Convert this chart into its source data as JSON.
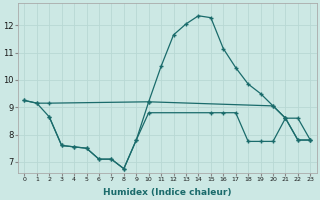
{
  "xlabel": "Humidex (Indice chaleur)",
  "background_color": "#cce8e4",
  "grid_color": "#b8d8d4",
  "line_color": "#1a6b6b",
  "xlim": [
    -0.5,
    23.5
  ],
  "ylim": [
    6.6,
    12.8
  ],
  "yticks": [
    7,
    8,
    9,
    10,
    11,
    12
  ],
  "ytick_labels": [
    "7",
    "8",
    "9",
    "10",
    "11",
    "12"
  ],
  "xtick_labels": [
    "0",
    "1",
    "2",
    "3",
    "4",
    "5",
    "6",
    "7",
    "8",
    "9",
    "10",
    "11",
    "12",
    "13",
    "14",
    "15",
    "16",
    "17",
    "18",
    "19",
    "20",
    "21",
    "22",
    "23"
  ],
  "line1_x": [
    0,
    1,
    2,
    10,
    20,
    21,
    22,
    23
  ],
  "line1_y": [
    9.25,
    9.15,
    9.15,
    9.2,
    9.05,
    8.6,
    8.6,
    7.8
  ],
  "line2_x": [
    0,
    1,
    2,
    3,
    4,
    5,
    6,
    7,
    8,
    9,
    10,
    11,
    12,
    13,
    14,
    15,
    16,
    17,
    18,
    19,
    20,
    21,
    22,
    23
  ],
  "line2_y": [
    9.25,
    9.15,
    8.65,
    7.6,
    7.55,
    7.5,
    7.1,
    7.1,
    6.75,
    7.8,
    9.2,
    10.5,
    11.65,
    12.05,
    12.35,
    12.28,
    11.15,
    10.45,
    9.85,
    9.5,
    9.05,
    8.6,
    7.8,
    7.8
  ],
  "line3_x": [
    2,
    3,
    4,
    5,
    6,
    7,
    8,
    9,
    10,
    15,
    16,
    17,
    18,
    19,
    20,
    21,
    22,
    23
  ],
  "line3_y": [
    8.65,
    7.6,
    7.55,
    7.5,
    7.1,
    7.1,
    6.75,
    7.8,
    8.8,
    8.8,
    8.8,
    8.8,
    7.75,
    7.75,
    7.75,
    8.6,
    7.8,
    7.8
  ]
}
